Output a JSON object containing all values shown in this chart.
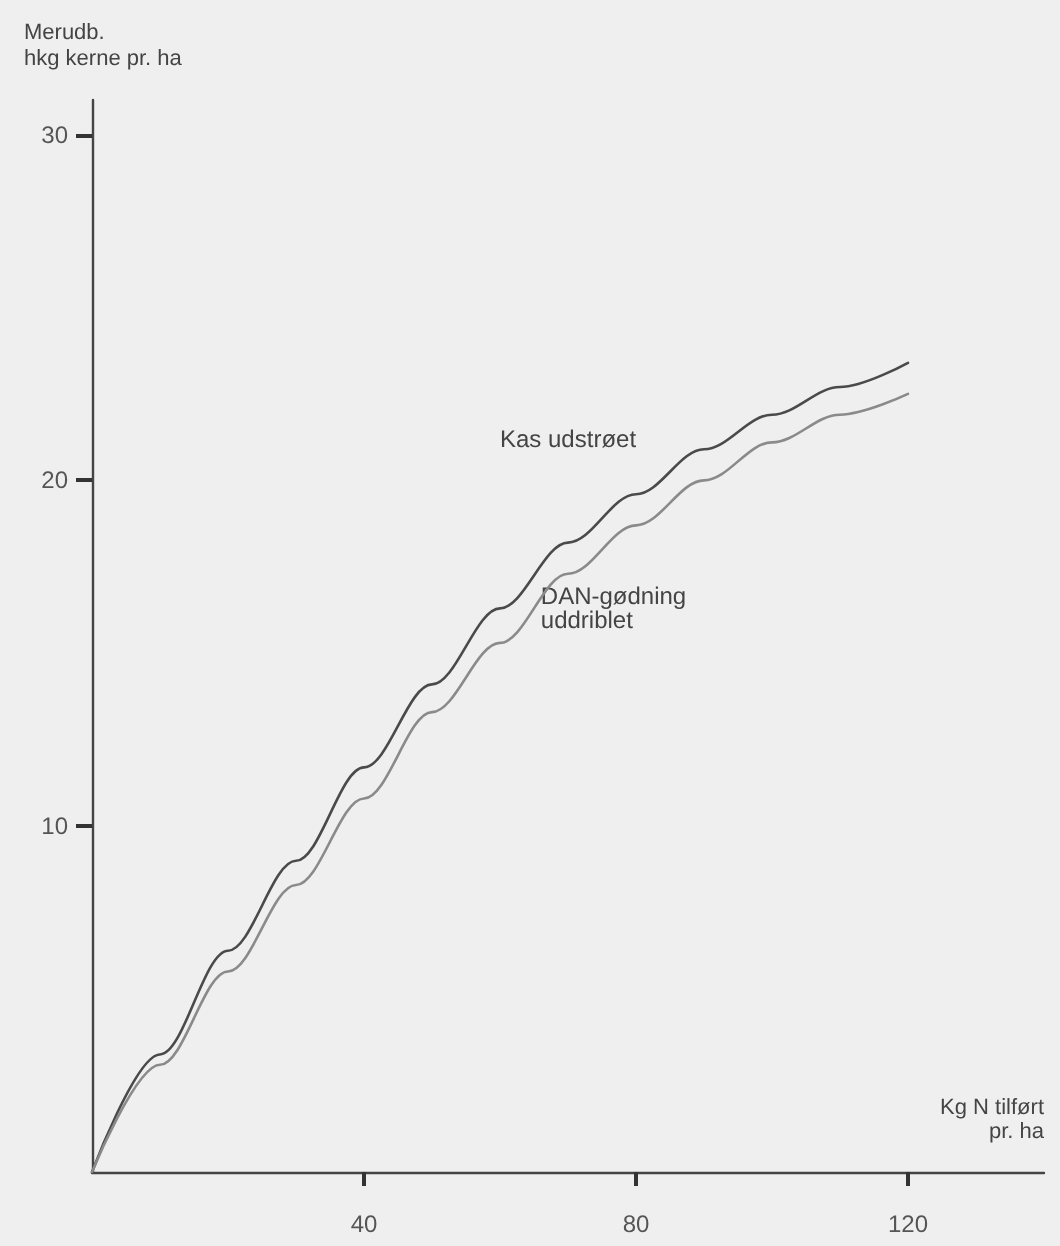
{
  "chart_data": {
    "type": "line",
    "xlabel": "Kg N tilført\npr. ha",
    "ylabel": "Merudb.\nhkg kerne pr. ha",
    "x": [
      0,
      10,
      20,
      30,
      40,
      50,
      60,
      70,
      80,
      90,
      100,
      110,
      120
    ],
    "series": [
      {
        "name": "Kas udstrøet",
        "color": "#4a4a4a",
        "values": [
          0,
          3.4,
          6.4,
          9.0,
          11.7,
          14.1,
          16.3,
          18.2,
          19.6,
          20.9,
          21.9,
          22.7,
          23.4
        ]
      },
      {
        "name": "DAN-gødning\nuddriblet",
        "color": "#8a8a8a",
        "values": [
          0,
          3.1,
          5.8,
          8.3,
          10.8,
          13.3,
          15.3,
          17.3,
          18.7,
          20.0,
          21.1,
          21.9,
          22.5
        ]
      }
    ],
    "xlim": [
      0,
      140
    ],
    "xticks": [
      40,
      80,
      120
    ],
    "ylim": [
      0,
      31
    ],
    "yticks": [
      10,
      20,
      30
    ],
    "grid": false,
    "legend": false,
    "marker": "none",
    "line_style": "solid"
  }
}
